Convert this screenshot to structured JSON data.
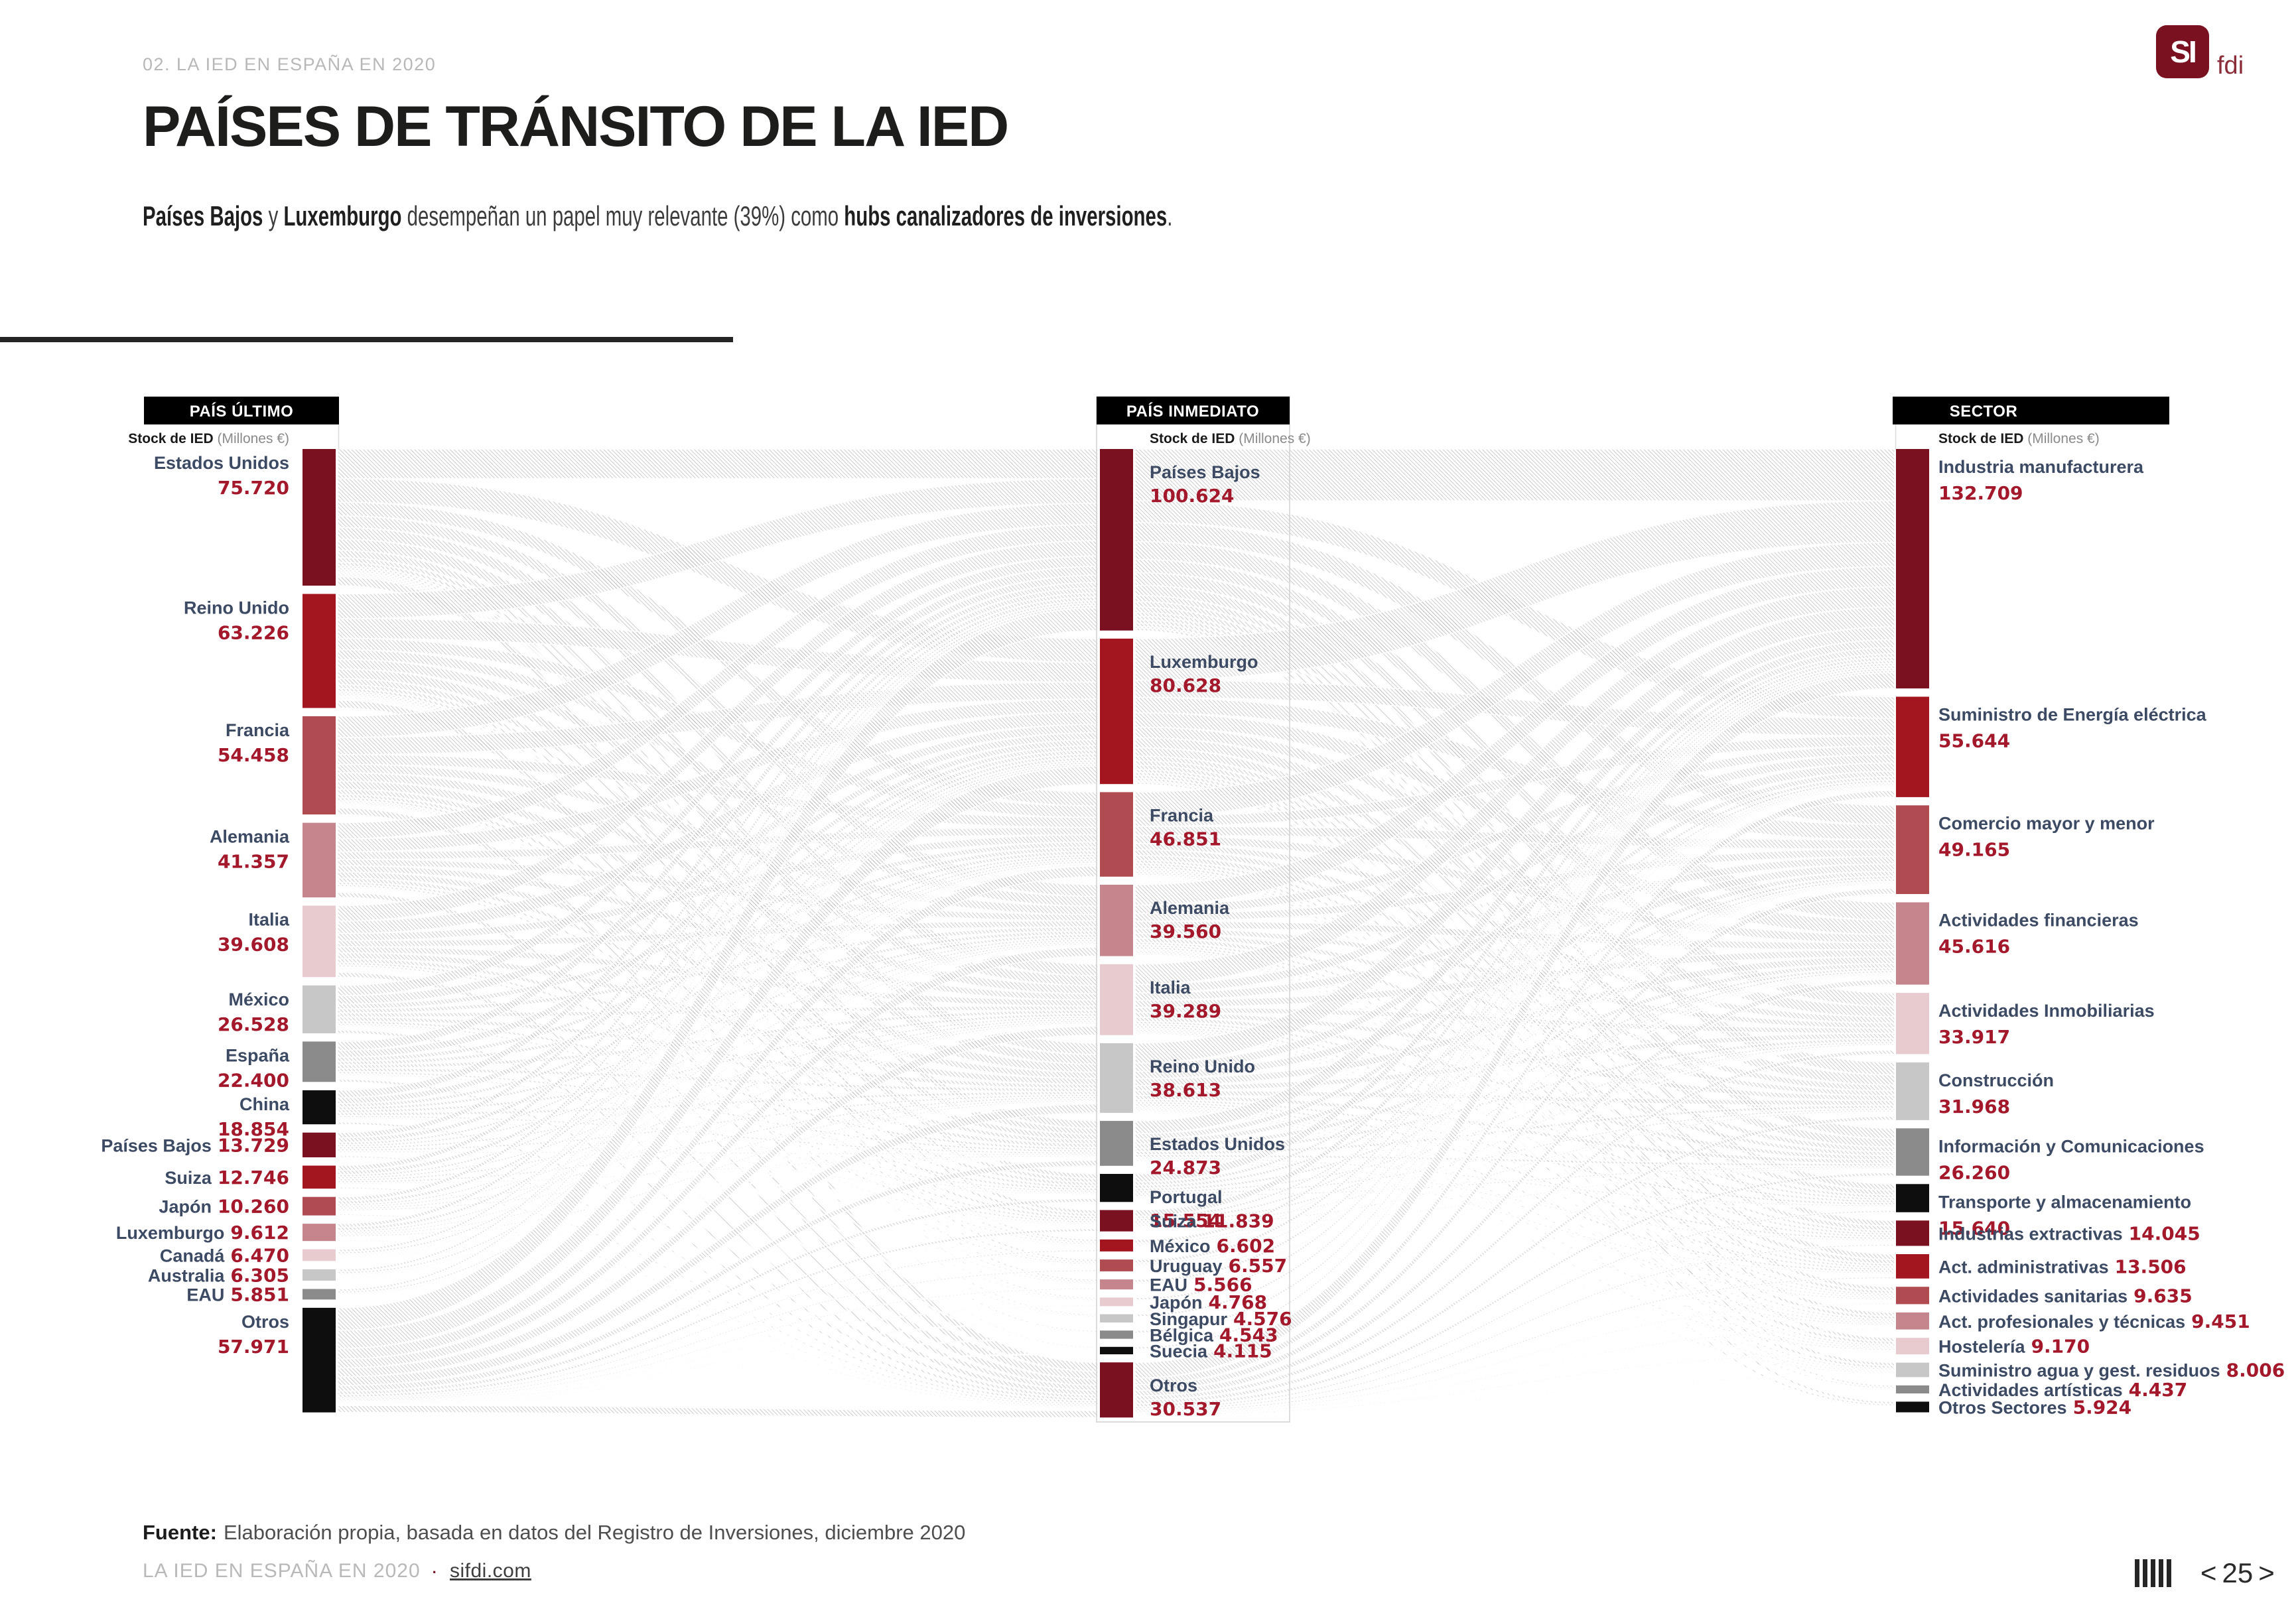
{
  "page": {
    "breadcrumb": "02. LA IED EN ESPAÑA EN 2020",
    "title": "PAÍSES DE TRÁNSITO DE LA IED",
    "subtitle_segments": [
      {
        "text": "Países Bajos",
        "bold": true
      },
      {
        "text": " y ",
        "bold": false
      },
      {
        "text": "Luxemburgo",
        "bold": true
      },
      {
        "text": " desempeñan un papel muy relevante (39%) como ",
        "bold": false
      },
      {
        "text": "hubs canalizadores de inversiones",
        "bold": true
      },
      {
        "text": ".",
        "bold": false
      }
    ],
    "logo": {
      "square_text": "SI",
      "suffix": "fdi"
    },
    "source_label": "Fuente:",
    "source_text": "Elaboración propia, basada en datos del Registro de Inversiones, diciembre 2020",
    "footer_left": "LA IED EN ESPAÑA EN 2020",
    "footer_separator": "·",
    "footer_link": "sifdi.com",
    "pagination": {
      "prev": "<",
      "page": "25",
      "next": ">"
    }
  },
  "chart_data": {
    "type": "sankey",
    "title": "PAÍSES DE TRÁNSITO DE LA IED",
    "unit_label": "Stock de IED",
    "unit_suffix": "(Millones €)",
    "palette": {
      "maroon": "#7a1120",
      "red": "#a4161f",
      "brick": "#b04b52",
      "rose": "#c5858c",
      "blush": "#e8cbcf",
      "silver": "#c7c7c7",
      "gray": "#8b8b8b",
      "black": "#0e0e0e"
    },
    "color_cycle": [
      "maroon",
      "red",
      "brick",
      "rose",
      "blush",
      "silver",
      "gray",
      "black"
    ],
    "link_style": "gray diagonal hatch ribbons",
    "link_estimation": "proportional (individual ribbon values are not labeled in the figure)",
    "columns": [
      {
        "id": "pais_ultimo",
        "header": "PAÍS ÚLTIMO",
        "nodes": [
          {
            "label": "Estados Unidos",
            "value": 75720,
            "display": "75.720",
            "two_line": true
          },
          {
            "label": "Reino Unido",
            "value": 63226,
            "display": "63.226",
            "two_line": true
          },
          {
            "label": "Francia",
            "value": 54458,
            "display": "54.458",
            "two_line": true
          },
          {
            "label": "Alemania",
            "value": 41357,
            "display": "41.357",
            "two_line": true
          },
          {
            "label": "Italia",
            "value": 39608,
            "display": "39.608",
            "two_line": true
          },
          {
            "label": "México",
            "value": 26528,
            "display": "26.528",
            "two_line": true
          },
          {
            "label": "España",
            "value": 22400,
            "display": "22.400",
            "two_line": true
          },
          {
            "label": "China",
            "value": 18854,
            "display": "18.854",
            "two_line": true
          },
          {
            "label": "Países Bajos",
            "value": 13729,
            "display": "13.729",
            "two_line": false
          },
          {
            "label": "Suiza",
            "value": 12746,
            "display": "12.746",
            "two_line": false
          },
          {
            "label": "Japón",
            "value": 10260,
            "display": "10.260",
            "two_line": false
          },
          {
            "label": "Luxemburgo",
            "value": 9612,
            "display": "9.612",
            "two_line": false
          },
          {
            "label": "Canadá",
            "value": 6470,
            "display": "6.470",
            "two_line": false
          },
          {
            "label": "Australia",
            "value": 6305,
            "display": "6.305",
            "two_line": false
          },
          {
            "label": "EAU",
            "value": 5851,
            "display": "5.851",
            "two_line": false
          },
          {
            "label": "Otros",
            "value": 57971,
            "display": "57.971",
            "two_line": true
          }
        ]
      },
      {
        "id": "pais_inmediato",
        "header": "PAÍS INMEDIATO",
        "nodes": [
          {
            "label": "Países Bajos",
            "value": 100624,
            "display": "100.624",
            "two_line": true
          },
          {
            "label": "Luxemburgo",
            "value": 80628,
            "display": "80.628",
            "two_line": true
          },
          {
            "label": "Francia",
            "value": 46851,
            "display": "46.851",
            "two_line": true
          },
          {
            "label": "Alemania",
            "value": 39560,
            "display": "39.560",
            "two_line": true
          },
          {
            "label": "Italia",
            "value": 39289,
            "display": "39.289",
            "two_line": true
          },
          {
            "label": "Reino Unido",
            "value": 38613,
            "display": "38.613",
            "two_line": true
          },
          {
            "label": "Estados Unidos",
            "value": 24873,
            "display": "24.873",
            "two_line": true
          },
          {
            "label": "Portugal",
            "value": 15554,
            "display": "15.554",
            "two_line": true
          },
          {
            "label": "Suiza",
            "value": 11839,
            "display": "11.839",
            "two_line": false
          },
          {
            "label": "México",
            "value": 6602,
            "display": "6.602",
            "two_line": false
          },
          {
            "label": "Uruguay",
            "value": 6557,
            "display": "6.557",
            "two_line": false
          },
          {
            "label": "EAU",
            "value": 5566,
            "display": "5.566",
            "two_line": false
          },
          {
            "label": "Japón",
            "value": 4768,
            "display": "4.768",
            "two_line": false
          },
          {
            "label": "Singapur",
            "value": 4576,
            "display": "4.576",
            "two_line": false
          },
          {
            "label": "Bélgica",
            "value": 4543,
            "display": "4.543",
            "two_line": false
          },
          {
            "label": "Suecia",
            "value": 4115,
            "display": "4.115",
            "two_line": false
          },
          {
            "label": "Otros",
            "value": 30537,
            "display": "30.537",
            "two_line": true
          }
        ]
      },
      {
        "id": "sector",
        "header": "SECTOR",
        "nodes": [
          {
            "label": "Industria manufacturera",
            "value": 132709,
            "display": "132.709",
            "two_line": true
          },
          {
            "label": "Suministro de Energía eléctrica",
            "value": 55644,
            "display": "55.644",
            "two_line": true
          },
          {
            "label": "Comercio mayor y menor",
            "value": 49165,
            "display": "49.165",
            "two_line": true
          },
          {
            "label": "Actividades financieras",
            "value": 45616,
            "display": "45.616",
            "two_line": true
          },
          {
            "label": "Actividades Inmobiliarias",
            "value": 33917,
            "display": "33.917",
            "two_line": true
          },
          {
            "label": "Construcción",
            "value": 31968,
            "display": "31.968",
            "two_line": true
          },
          {
            "label": "Información y Comunicaciones",
            "value": 26260,
            "display": "26.260",
            "two_line": true
          },
          {
            "label": "Transporte y almacenamiento",
            "value": 15640,
            "display": "15.640",
            "two_line": true
          },
          {
            "label": "Industrias extractivas",
            "value": 14045,
            "display": "14.045",
            "two_line": false
          },
          {
            "label": "Act. administrativas",
            "value": 13506,
            "display": "13.506",
            "two_line": false
          },
          {
            "label": "Actividades sanitarias",
            "value": 9635,
            "display": "9.635",
            "two_line": false
          },
          {
            "label": "Act. profesionales y técnicas",
            "value": 9451,
            "display": "9.451",
            "two_line": false
          },
          {
            "label": "Hostelería",
            "value": 9170,
            "display": "9.170",
            "two_line": false
          },
          {
            "label": "Suministro agua y gest. residuos",
            "value": 8006,
            "display": "8.006",
            "two_line": false
          },
          {
            "label": "Actividades artísticas",
            "value": 4437,
            "display": "4.437",
            "two_line": false
          },
          {
            "label": "Otros Sectores",
            "value": 5924,
            "display": "5.924",
            "two_line": false
          }
        ]
      }
    ]
  }
}
